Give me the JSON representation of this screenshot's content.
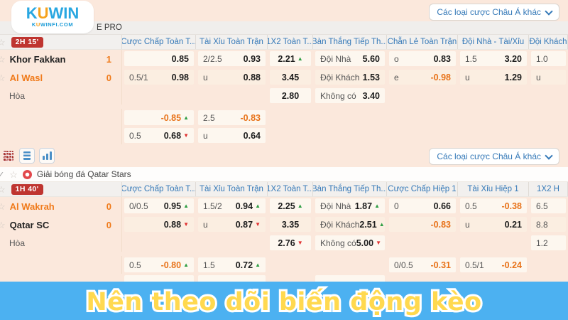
{
  "brand": {
    "logo_main": "KUWIN",
    "logo_sub": "KUWINFI.COM",
    "blue": "#29a7e1",
    "orange": "#f6a21d"
  },
  "asia_button": {
    "label": "Các loại cược Châu Á khác"
  },
  "toolbar": {
    "icons": [
      "grid-icon",
      "rows-icon",
      "bar-chart-icon"
    ]
  },
  "banner": {
    "text": "Nên theo dõi biến động kèo",
    "bg": "#4cb1f1",
    "fg": "#ffd94f"
  },
  "colors": {
    "page_bg": "#fbe8dc",
    "cell_bg": "#fdf7ef",
    "cell_bg_alt": "#fbeee1",
    "header_text": "#3579b8",
    "negative_odds": "#e8731a",
    "up_arrow": "#2f9e44",
    "down_arrow": "#e03131",
    "badge_bg": "#bf3530",
    "team_orange": "#f07a1a"
  },
  "matches": [
    {
      "league": "E PRO",
      "time_badge": "2H 15'",
      "headers": [
        "Cược Chấp Toàn T...",
        "Tài Xỉu Toàn Trận",
        "1X2 Toàn T...",
        "Bàn Thắng Tiếp Th...",
        "Chẵn Lẻ Toàn Trận",
        "Đội Nhà - Tài/Xỉu",
        "Đội Khách"
      ],
      "rows": [
        {
          "left": {
            "type": "team",
            "name": "Khor Fakkan",
            "score": "1",
            "orange": false
          },
          "cells": [
            {
              "l": "",
              "v": "0.85"
            },
            {
              "l": "2/2.5",
              "v": "0.93"
            },
            {
              "l": "",
              "v": "2.21",
              "d": "up"
            },
            {
              "l": "Đội Nhà",
              "v": "5.60"
            },
            {
              "l": "o",
              "v": "0.83"
            },
            {
              "l": "1.5",
              "v": "3.20"
            },
            {
              "l": "1.0",
              "v": ""
            }
          ]
        },
        {
          "left": {
            "type": "team",
            "name": "Al Wasl",
            "score": "0",
            "orange": true
          },
          "shade": true,
          "cells": [
            {
              "l": "0.5/1",
              "v": "0.98"
            },
            {
              "l": "u",
              "v": "0.88"
            },
            {
              "l": "",
              "v": "3.45"
            },
            {
              "l": "Đội Khách",
              "v": "1.53"
            },
            {
              "l": "e",
              "v": "-0.98"
            },
            {
              "l": "u",
              "v": "1.29"
            },
            {
              "l": "u",
              "v": ""
            }
          ]
        },
        {
          "left": {
            "type": "draw",
            "label": "Hòa"
          },
          "short": true,
          "cells": [
            null,
            null,
            {
              "l": "",
              "v": "2.80"
            },
            {
              "l": "Không có",
              "v": "3.40"
            },
            null,
            null,
            null
          ]
        },
        {
          "left": {
            "type": "empty"
          },
          "gap": true,
          "short": true,
          "cells": [
            {
              "l": "",
              "v": "-0.85",
              "d": "up"
            },
            {
              "l": "2.5",
              "v": "-0.83"
            },
            null,
            null,
            null,
            null,
            null
          ]
        },
        {
          "left": {
            "type": "empty"
          },
          "short": true,
          "cells": [
            {
              "l": "0.5",
              "v": "0.68",
              "d": "down"
            },
            {
              "l": "u",
              "v": "0.64"
            },
            null,
            null,
            null,
            null,
            null
          ]
        }
      ]
    },
    {
      "league": "Giải bóng đá Qatar Stars",
      "time_badge": "1H 40'",
      "headers": [
        "Cược Chấp Toàn T...",
        "Tài Xỉu Toàn Trận",
        "1X2 Toàn T...",
        "Bàn Thắng Tiếp Th...",
        "Cược Chấp Hiệp 1",
        "Tài Xỉu Hiệp 1",
        "1X2 H"
      ],
      "rows": [
        {
          "left": {
            "type": "team",
            "name": "Al Wakrah",
            "score": "0",
            "orange": true
          },
          "cells": [
            {
              "l": "0/0.5",
              "v": "0.95",
              "d": "up"
            },
            {
              "l": "1.5/2",
              "v": "0.94",
              "d": "up"
            },
            {
              "l": "",
              "v": "2.25",
              "d": "up"
            },
            {
              "l": "Đội Nhà",
              "v": "1.87",
              "d": "up"
            },
            {
              "l": "0",
              "v": "0.66"
            },
            {
              "l": "0.5",
              "v": "-0.38"
            },
            {
              "l": "6.5",
              "v": ""
            }
          ]
        },
        {
          "left": {
            "type": "team",
            "name": "Qatar SC",
            "score": "0",
            "orange": false
          },
          "shade": true,
          "cells": [
            {
              "l": "",
              "v": "0.88",
              "d": "down"
            },
            {
              "l": "u",
              "v": "0.87",
              "d": "down"
            },
            {
              "l": "",
              "v": "3.35"
            },
            {
              "l": "Đội Khách",
              "v": "2.51",
              "d": "up"
            },
            {
              "l": "",
              "v": "-0.83"
            },
            {
              "l": "u",
              "v": "0.21"
            },
            {
              "l": "8.8",
              "v": ""
            }
          ]
        },
        {
          "left": {
            "type": "draw",
            "label": "Hòa"
          },
          "short": true,
          "cells": [
            null,
            null,
            {
              "l": "",
              "v": "2.76",
              "d": "down"
            },
            {
              "l": "Không có",
              "v": "5.00",
              "d": "down"
            },
            null,
            null,
            {
              "l": "1.2",
              "v": ""
            }
          ]
        },
        {
          "left": {
            "type": "empty"
          },
          "gap": true,
          "short": true,
          "cells": [
            {
              "l": "0.5",
              "v": "-0.80",
              "d": "up"
            },
            {
              "l": "1.5",
              "v": "0.72",
              "d": "up"
            },
            null,
            null,
            {
              "l": "0/0.5",
              "v": "-0.31"
            },
            {
              "l": "0.5/1",
              "v": "-0.24"
            },
            null
          ]
        }
      ]
    }
  ]
}
